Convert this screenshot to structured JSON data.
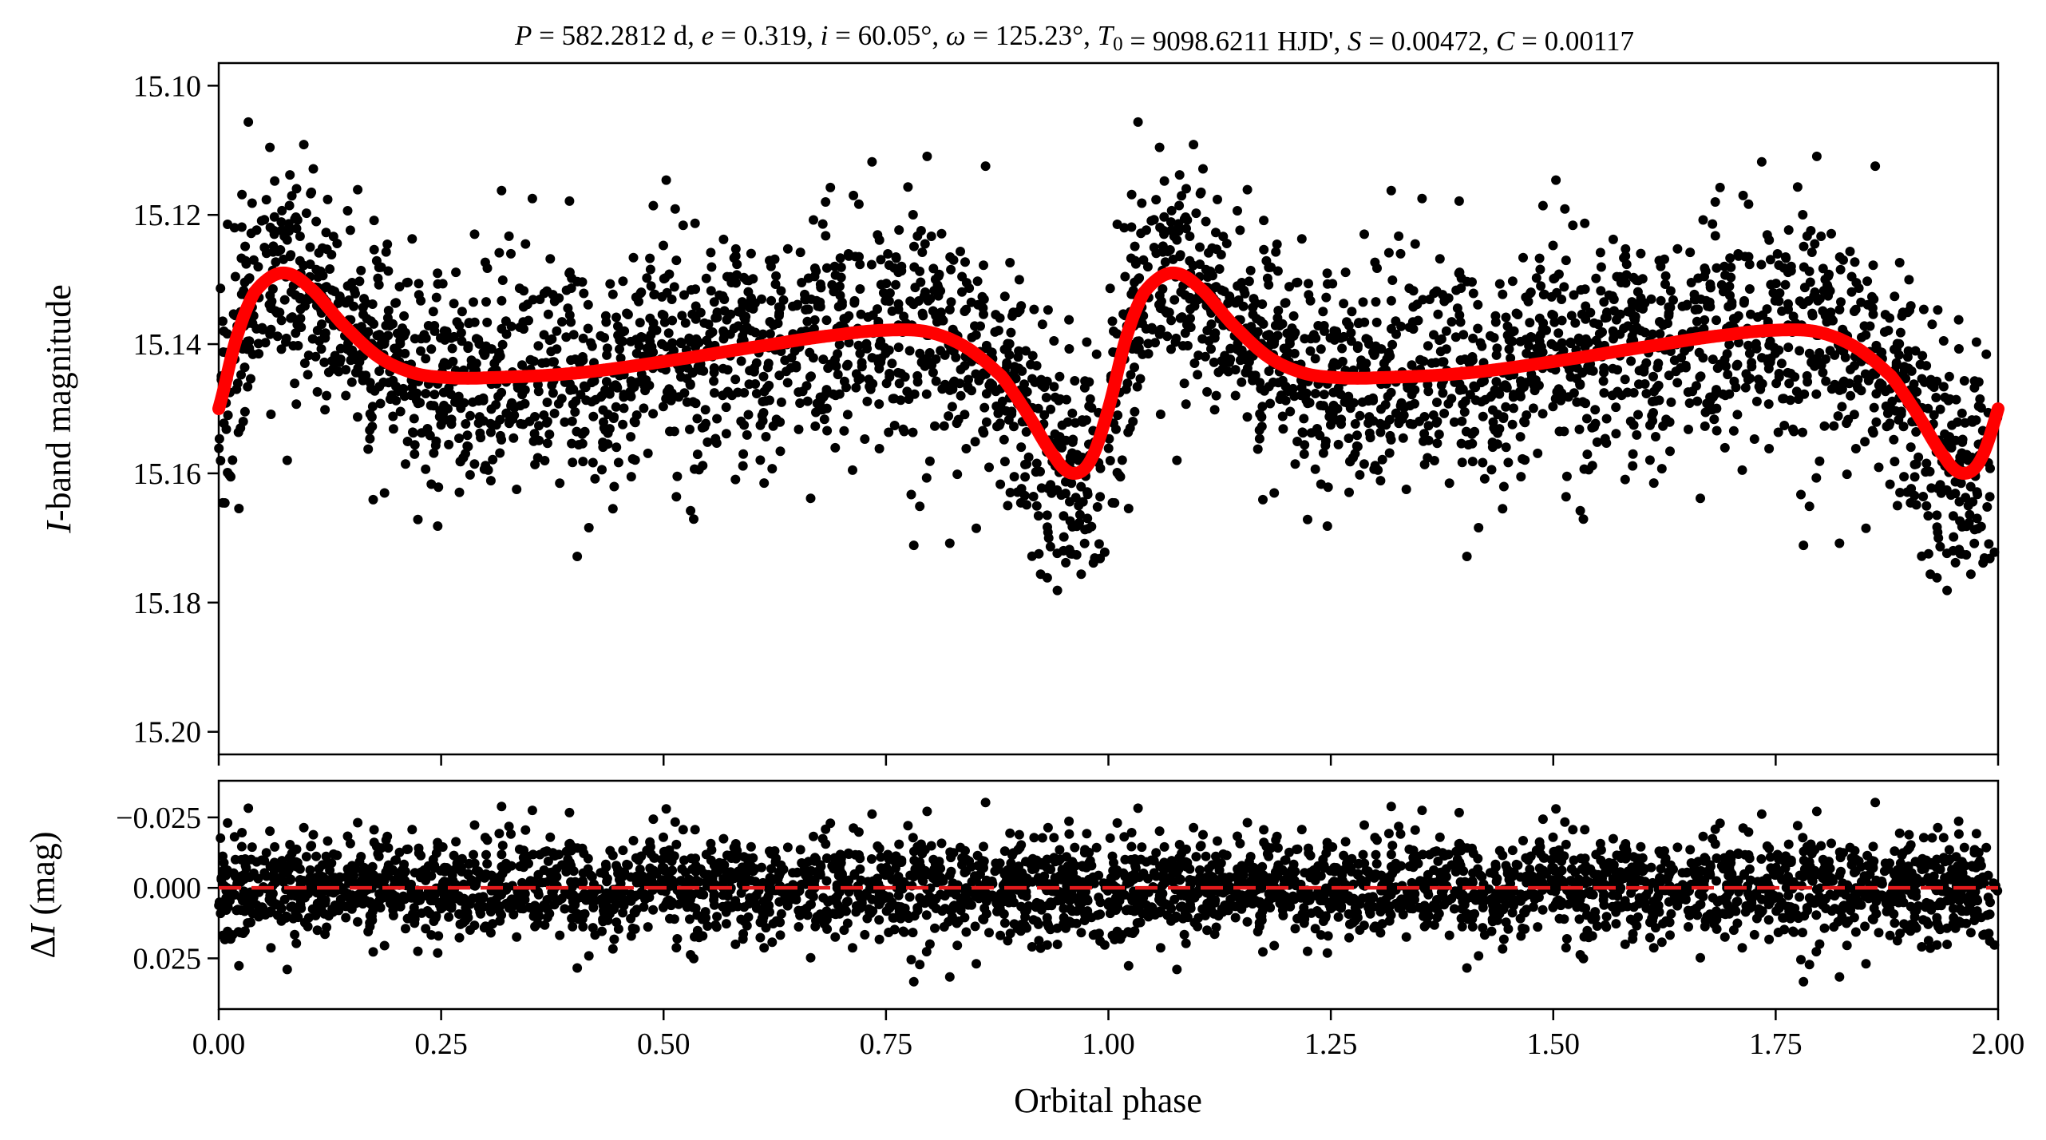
{
  "colors": {
    "points": "#000000",
    "model": "#ff0000",
    "zero_line": "#e31a1c",
    "axes": "#000000"
  },
  "chart_data": [
    {
      "type": "scatter",
      "title": "P = 582.2812 d, e = 0.319, i = 60.05°, ω = 125.23°, T0 = 9098.6211 HJD', S = 0.00472, C = 0.00117",
      "title_parts": {
        "P": "582.2812 d",
        "e": "0.319",
        "i": "60.05°",
        "omega": "125.23°",
        "T0": "9098.6211 HJD'",
        "S": "0.00472",
        "C": "0.00117"
      },
      "xlabel": "",
      "ylabel": "I-band magnitude",
      "xlim": [
        0.0,
        2.0
      ],
      "ylim": [
        15.2035,
        15.0965
      ],
      "y_inverted": true,
      "yticks": [
        "15.10",
        "15.12",
        "15.14",
        "15.16",
        "15.18",
        "15.20"
      ],
      "ytick_values": [
        15.1,
        15.12,
        15.14,
        15.16,
        15.18,
        15.2
      ],
      "grid": false,
      "series": [
        {
          "kind": "scatter-observations",
          "n_points_per_cycle": 1700,
          "scatter_sigma_mag": 0.0085
        },
        {
          "kind": "model-curve",
          "x": [
            0.0,
            0.02,
            0.04,
            0.07,
            0.1,
            0.14,
            0.18,
            0.22,
            0.26,
            0.3,
            0.4,
            0.5,
            0.6,
            0.7,
            0.76,
            0.8,
            0.84,
            0.88,
            0.91,
            0.94,
            0.96,
            0.98,
            1.0
          ],
          "y": [
            15.15,
            15.139,
            15.132,
            15.129,
            15.131,
            15.137,
            15.142,
            15.1445,
            15.1452,
            15.1452,
            15.1445,
            15.1427,
            15.1405,
            15.1385,
            15.1378,
            15.1382,
            15.1405,
            15.145,
            15.151,
            15.1575,
            15.16,
            15.158,
            15.15
          ]
        }
      ]
    },
    {
      "type": "scatter",
      "xlabel": "Orbital phase",
      "ylabel": "ΔI (mag)",
      "xlim": [
        0.0,
        2.0
      ],
      "ylim": [
        0.043,
        -0.038
      ],
      "y_inverted": true,
      "xticks": [
        "0.00",
        "0.25",
        "0.50",
        "0.75",
        "1.00",
        "1.25",
        "1.50",
        "1.75",
        "2.00"
      ],
      "xtick_values": [
        0.0,
        0.25,
        0.5,
        0.75,
        1.0,
        1.25,
        1.5,
        1.75,
        2.0
      ],
      "yticks": [
        "−0.025",
        "0.000",
        "0.025"
      ],
      "ytick_values": [
        -0.025,
        0.0,
        0.025
      ],
      "grid": false,
      "reference_line": {
        "y": 0.0,
        "style": "dashed"
      },
      "series": [
        {
          "kind": "residuals",
          "scatter_sigma_mag": 0.0085
        }
      ]
    }
  ]
}
